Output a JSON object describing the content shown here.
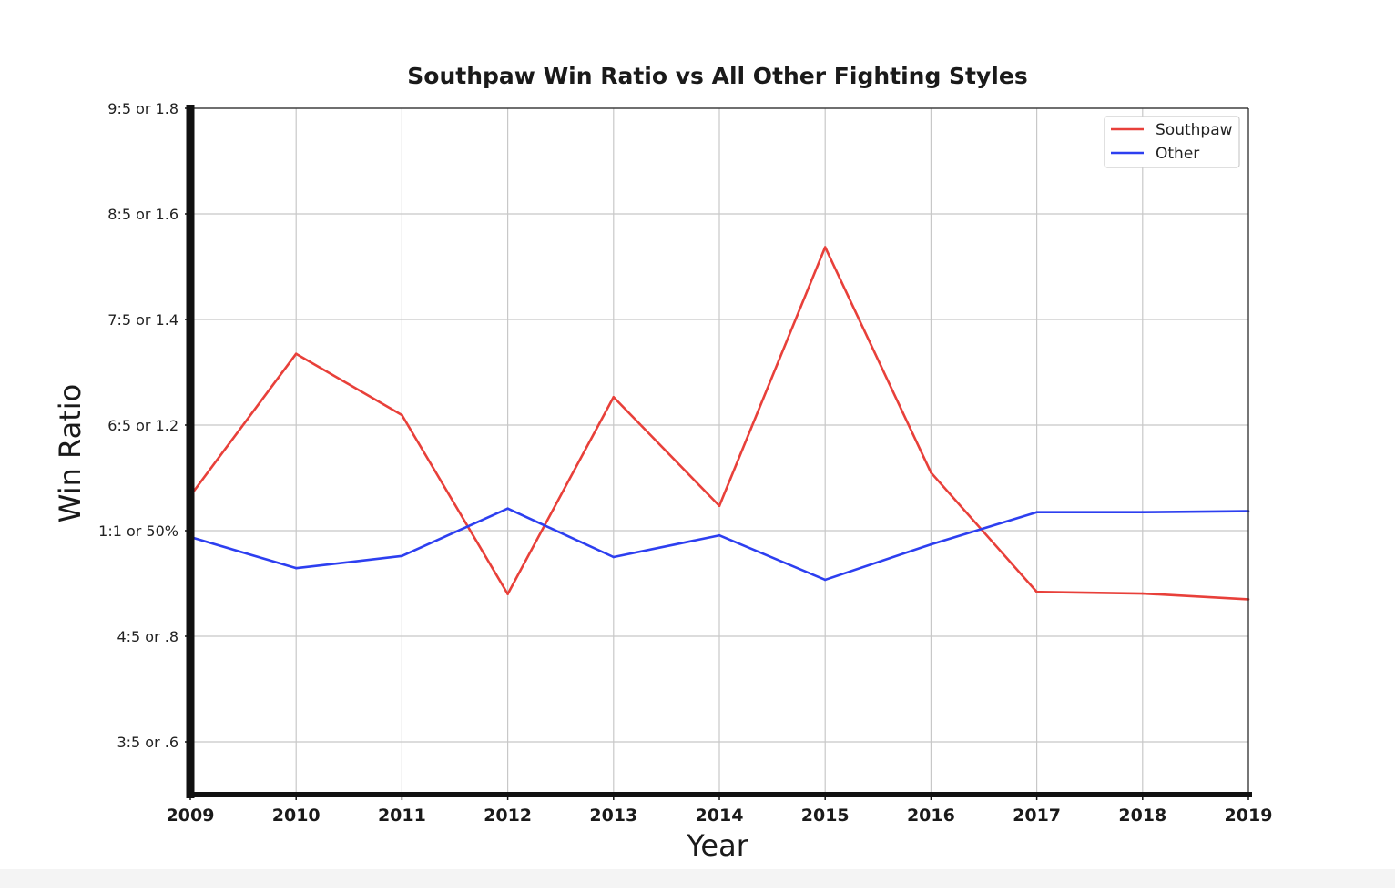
{
  "chart_data": {
    "type": "line",
    "title": "Southpaw Win Ratio vs All Other Fighting Styles",
    "xlabel": "Year",
    "ylabel": "Win Ratio",
    "x": [
      2009,
      2010,
      2011,
      2012,
      2013,
      2014,
      2015,
      2016,
      2017,
      2018,
      2019
    ],
    "xlim": [
      2009,
      2019
    ],
    "ylim": [
      0.5,
      1.8
    ],
    "yticks": [
      {
        "value": 0.6,
        "label": "3:5 or .6"
      },
      {
        "value": 0.8,
        "label": "4:5 or .8"
      },
      {
        "value": 1.0,
        "label": "1:1 or 50%"
      },
      {
        "value": 1.2,
        "label": "6:5 or 1.2"
      },
      {
        "value": 1.4,
        "label": "7:5 or 1.4"
      },
      {
        "value": 1.6,
        "label": "8:5 or 1.6"
      },
      {
        "value": 1.8,
        "label": "9:5 or 1.8"
      }
    ],
    "grid": true,
    "legend_position": "top-right",
    "series": [
      {
        "name": "Southpaw",
        "color": "#e8403a",
        "values": [
          1.066,
          1.335,
          1.219,
          0.88,
          1.253,
          1.047,
          1.537,
          1.11,
          0.884,
          0.881,
          0.87
        ]
      },
      {
        "name": "Other",
        "color": "#2d3ff0",
        "values": [
          0.988,
          0.929,
          0.952,
          1.042,
          0.95,
          0.991,
          0.907,
          0.974,
          1.035,
          1.035,
          1.037
        ]
      }
    ]
  }
}
